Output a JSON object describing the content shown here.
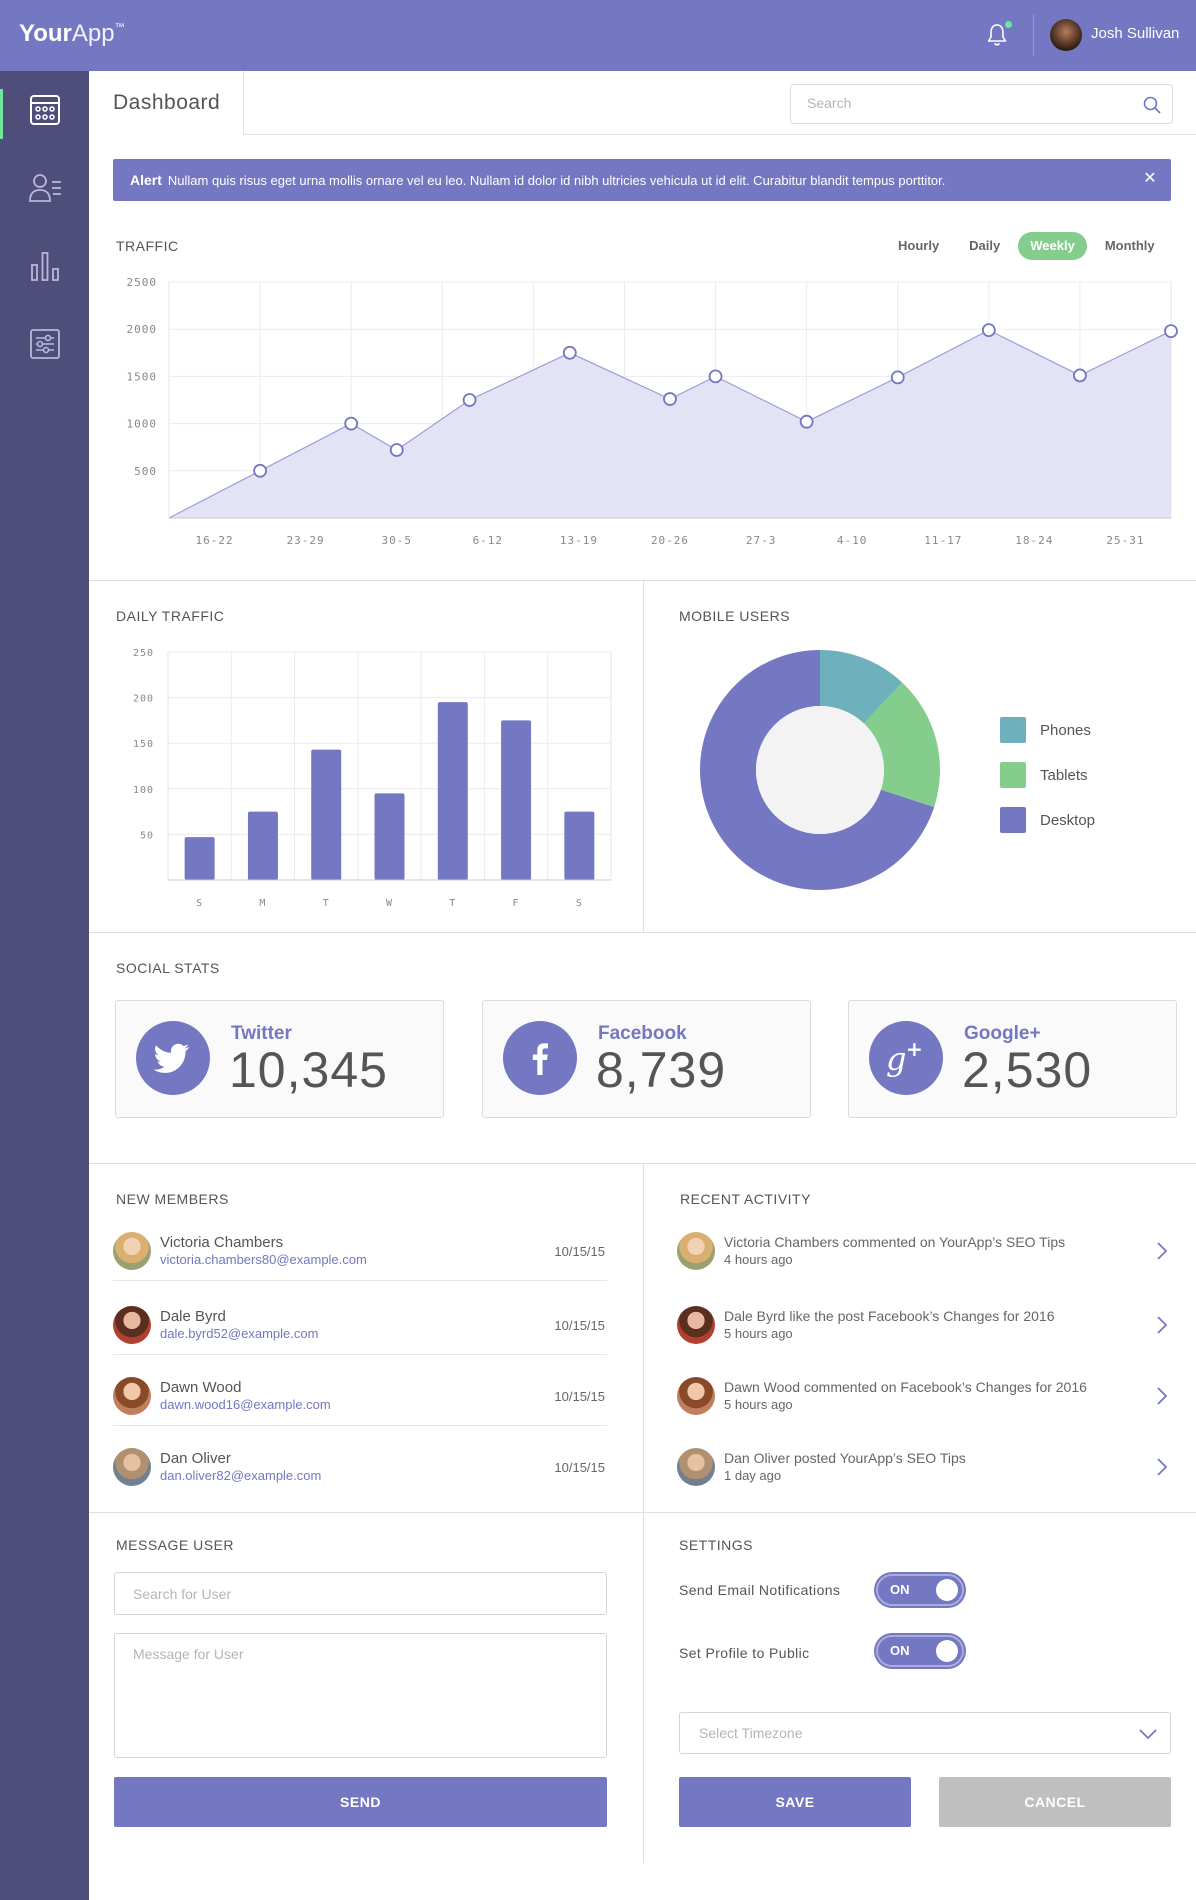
{
  "header": {
    "logo_bold": "Your",
    "logo_light": "App",
    "logo_tm": "™",
    "user_name": "Josh Sullivan",
    "icons": [
      "bell-icon",
      "user-avatar"
    ]
  },
  "sidebar": {
    "items": [
      {
        "name": "dashboard",
        "icon": "calendar-grid-icon",
        "active": true
      },
      {
        "name": "users",
        "icon": "user-list-icon",
        "active": false
      },
      {
        "name": "stats",
        "icon": "bar-chart-icon",
        "active": false
      },
      {
        "name": "settings",
        "icon": "sliders-icon",
        "active": false
      }
    ]
  },
  "tabbar": {
    "title": "Dashboard",
    "search_placeholder": "Search"
  },
  "alert": {
    "label": "Alert",
    "message": "Nullam quis risus eget urna mollis ornare vel eu leo. Nullam id dolor id nibh ultricies vehicula ut id elit. Curabitur blandit tempus porttitor.",
    "close": "✕"
  },
  "traffic": {
    "title": "TRAFFIC",
    "ranges": [
      "Hourly",
      "Daily",
      "Weekly",
      "Monthly"
    ],
    "active_range": "Weekly"
  },
  "daily_traffic": {
    "title": "DAILY TRAFFIC"
  },
  "mobile_users": {
    "title": "MOBILE USERS"
  },
  "chart_data": [
    {
      "type": "area",
      "categories": [
        "16-22",
        "23-29",
        "30-5",
        "6-12",
        "13-19",
        "20-26",
        "27-3",
        "4-10",
        "11-17",
        "18-24",
        "25-31"
      ],
      "y_ticks": [
        500,
        1000,
        1500,
        2000,
        2500
      ],
      "points": [
        {
          "x": 0,
          "y": 0
        },
        {
          "x": 1,
          "y": 500
        },
        {
          "x": 2,
          "y": 1000
        },
        {
          "x": 2.5,
          "y": 720
        },
        {
          "x": 3.3,
          "y": 1250
        },
        {
          "x": 4.4,
          "y": 1750
        },
        {
          "x": 5.5,
          "y": 1260
        },
        {
          "x": 6,
          "y": 1500
        },
        {
          "x": 7,
          "y": 1020
        },
        {
          "x": 8,
          "y": 1490
        },
        {
          "x": 9,
          "y": 1990
        },
        {
          "x": 10,
          "y": 1510
        },
        {
          "x": 11,
          "y": 1980
        }
      ],
      "ylim": [
        0,
        2500
      ],
      "grid": true,
      "fill_color": "#e3e3f5",
      "line_color": "#9c9ed6"
    },
    {
      "type": "bar",
      "categories": [
        "S",
        "M",
        "T",
        "W",
        "T",
        "F",
        "S"
      ],
      "values": [
        47,
        75,
        143,
        95,
        195,
        175,
        75
      ],
      "y_ticks": [
        50,
        100,
        150,
        200,
        250
      ],
      "ylim": [
        0,
        250
      ],
      "grid": true,
      "color": "#7477c1"
    },
    {
      "type": "pie",
      "donut": true,
      "labels": [
        "Phones",
        "Tablets",
        "Desktop"
      ],
      "values": [
        12,
        18,
        70
      ],
      "colors": [
        "#6eb0bc",
        "#84cd8c",
        "#7477c1"
      ],
      "legend": "right"
    }
  ],
  "social": {
    "title": "SOCIAL STATS",
    "cards": [
      {
        "name": "Twitter",
        "count": "10,345",
        "icon": "twitter-icon"
      },
      {
        "name": "Facebook",
        "count": "8,739",
        "icon": "facebook-icon"
      },
      {
        "name": "Google+",
        "count": "2,530",
        "icon": "google-plus-icon"
      }
    ]
  },
  "members": {
    "title": "NEW MEMBERS",
    "rows": [
      {
        "name": "Victoria Chambers",
        "email": "victoria.chambers80@example.com",
        "date": "10/15/15"
      },
      {
        "name": "Dale Byrd",
        "email": "dale.byrd52@example.com",
        "date": "10/15/15"
      },
      {
        "name": "Dawn Wood",
        "email": "dawn.wood16@example.com",
        "date": "10/15/15"
      },
      {
        "name": "Dan Oliver",
        "email": "dan.oliver82@example.com",
        "date": "10/15/15"
      }
    ]
  },
  "activity": {
    "title": "RECENT ACTIVITY",
    "rows": [
      {
        "text": "Victoria Chambers commented on YourApp’s SEO Tips",
        "time": "4 hours ago"
      },
      {
        "text": "Dale Byrd like the post Facebook’s Changes for 2016",
        "time": "5 hours ago"
      },
      {
        "text": "Dawn Wood commented on Facebook’s Changes for 2016",
        "time": "5 hours ago"
      },
      {
        "text": "Dan Oliver posted YourApp’s SEO Tips",
        "time": "1 day ago"
      }
    ]
  },
  "message": {
    "title": "MESSAGE USER",
    "user_placeholder": "Search for User",
    "message_placeholder": "Message for User",
    "send_label": "SEND"
  },
  "settings": {
    "title": "SETTINGS",
    "email_label": "Send Email Notifications",
    "email_toggle": "ON",
    "public_label": "Set Profile to Public",
    "public_toggle": "ON",
    "timezone_placeholder": "Select Timezone",
    "save_label": "SAVE",
    "cancel_label": "CANCEL"
  }
}
